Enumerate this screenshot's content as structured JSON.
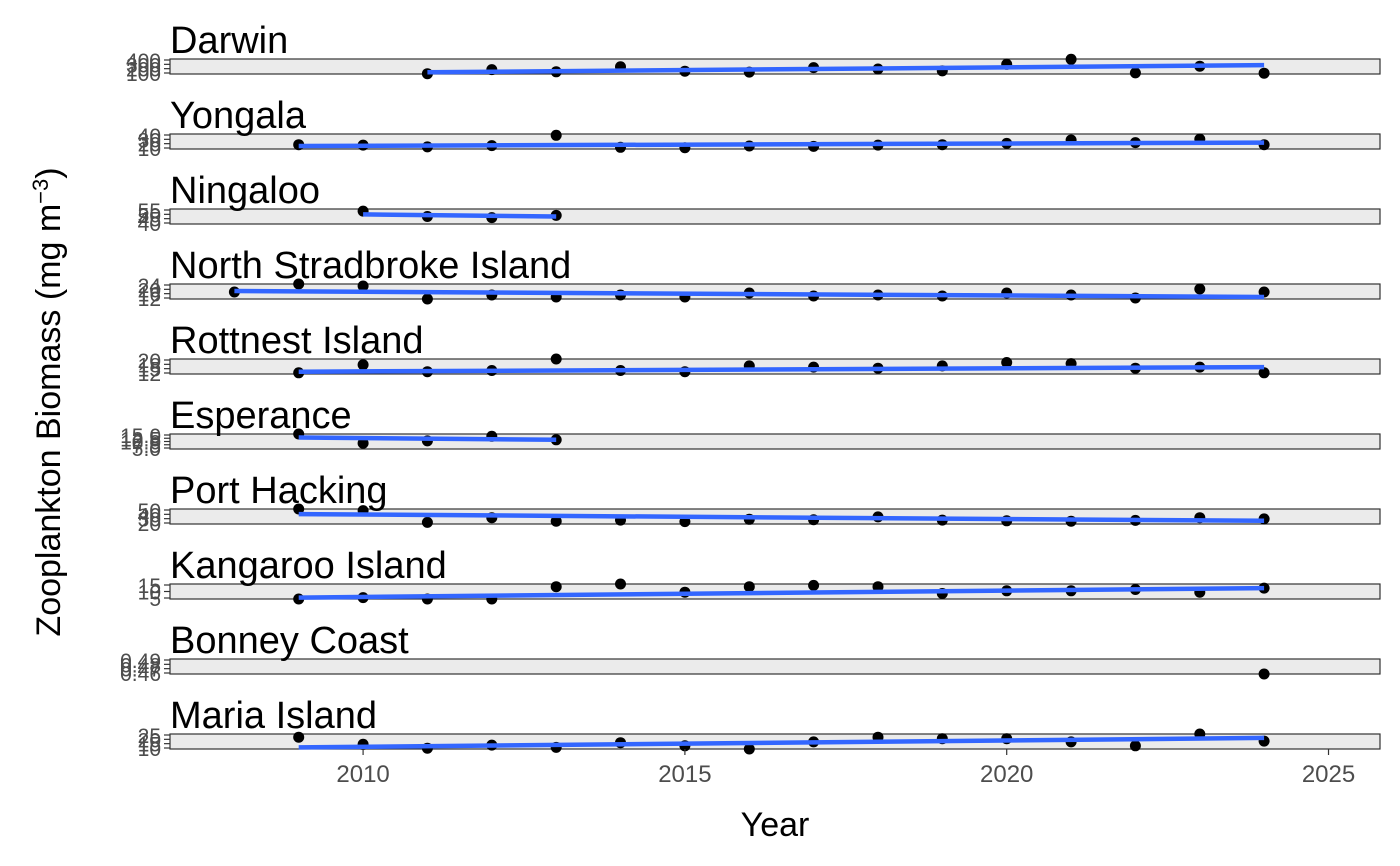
{
  "chart_data": {
    "type": "line",
    "xlabel": "Year",
    "ylabel": "Zooplankton Biomass (mg m",
    "ylabel_superscript": "−3",
    "ylabel_close": ")",
    "xlim": [
      2007,
      2025.8
    ],
    "x_ticks": [
      "2010",
      "2015",
      "2020",
      "2025"
    ],
    "x_tick_values": [
      2010,
      2015,
      2020,
      2025
    ],
    "point_color": "#000000",
    "trend_color": "#3366FF",
    "panel_fill": "#EBEBEB",
    "panels": [
      {
        "name": "Darwin",
        "ylim": [
          40,
          310
        ],
        "y_ticks": [
          "100",
          "200",
          "300",
          "400"
        ],
        "points": [
          [
            2011,
            45
          ],
          [
            2012,
            120
          ],
          [
            2013,
            80
          ],
          [
            2014,
            170
          ],
          [
            2015,
            90
          ],
          [
            2016,
            75
          ],
          [
            2017,
            155
          ],
          [
            2018,
            130
          ],
          [
            2019,
            95
          ],
          [
            2020,
            215
          ],
          [
            2021,
            305
          ],
          [
            2022,
            60
          ],
          [
            2023,
            180
          ],
          [
            2024,
            55
          ]
        ],
        "trend": [
          [
            2011,
            70
          ],
          [
            2024,
            200
          ]
        ]
      },
      {
        "name": "Yongala",
        "ylim": [
          15,
          50
        ],
        "y_ticks": [
          "10",
          "20",
          "30",
          "40"
        ],
        "points": [
          [
            2009,
            25
          ],
          [
            2010,
            24
          ],
          [
            2011,
            20
          ],
          [
            2012,
            23
          ],
          [
            2013,
            47
          ],
          [
            2014,
            19
          ],
          [
            2015,
            18
          ],
          [
            2016,
            22
          ],
          [
            2017,
            21
          ],
          [
            2018,
            24
          ],
          [
            2019,
            25
          ],
          [
            2020,
            28
          ],
          [
            2021,
            36
          ],
          [
            2022,
            30
          ],
          [
            2023,
            38
          ],
          [
            2024,
            25
          ]
        ],
        "trend": [
          [
            2009,
            22
          ],
          [
            2024,
            30
          ]
        ]
      },
      {
        "name": "Ningaloo",
        "ylim": [
          38,
          52
        ],
        "y_ticks": [
          "40",
          "45",
          "50",
          "55"
        ],
        "points": [
          [
            2010,
            50
          ],
          [
            2011,
            45
          ],
          [
            2012,
            44
          ],
          [
            2013,
            46
          ]
        ],
        "trend": [
          [
            2010,
            47
          ],
          [
            2013,
            45
          ]
        ]
      },
      {
        "name": "North Stradbroke Island",
        "ylim": [
          9,
          24
        ],
        "y_ticks": [
          "12",
          "16",
          "20",
          "24"
        ],
        "points": [
          [
            2008,
            16
          ],
          [
            2009,
            24
          ],
          [
            2010,
            22
          ],
          [
            2011,
            9
          ],
          [
            2012,
            13
          ],
          [
            2013,
            11
          ],
          [
            2014,
            13
          ],
          [
            2015,
            11
          ],
          [
            2016,
            15
          ],
          [
            2017,
            12
          ],
          [
            2018,
            13
          ],
          [
            2019,
            12
          ],
          [
            2020,
            15
          ],
          [
            2021,
            13
          ],
          [
            2022,
            10
          ],
          [
            2023,
            19
          ],
          [
            2024,
            16
          ]
        ],
        "trend": [
          [
            2008,
            17
          ],
          [
            2024,
            11
          ]
        ]
      },
      {
        "name": "Rottnest Island",
        "ylim": [
          9,
          22
        ],
        "y_ticks": [
          "12",
          "15",
          "18",
          "20"
        ],
        "points": [
          [
            2009,
            10
          ],
          [
            2010,
            17
          ],
          [
            2011,
            11
          ],
          [
            2012,
            12
          ],
          [
            2013,
            22
          ],
          [
            2014,
            12
          ],
          [
            2015,
            11
          ],
          [
            2016,
            16
          ],
          [
            2017,
            15
          ],
          [
            2018,
            14
          ],
          [
            2019,
            16
          ],
          [
            2020,
            19
          ],
          [
            2021,
            18
          ],
          [
            2022,
            14
          ],
          [
            2023,
            15
          ],
          [
            2024,
            10
          ]
        ],
        "trend": [
          [
            2009,
            11
          ],
          [
            2024,
            15
          ]
        ]
      },
      {
        "name": "Esperance",
        "ylim": [
          4,
          17
        ],
        "y_ticks": [
          "5.0",
          "7.5",
          "10.0",
          "12.5",
          "15.0"
        ],
        "points": [
          [
            2009,
            17
          ],
          [
            2010,
            9
          ],
          [
            2011,
            11
          ],
          [
            2012,
            15
          ],
          [
            2013,
            12
          ]
        ],
        "trend": [
          [
            2009,
            14
          ],
          [
            2013,
            12
          ]
        ]
      },
      {
        "name": "Port Hacking",
        "ylim": [
          8,
          46
        ],
        "y_ticks": [
          "20",
          "30",
          "40",
          "50"
        ],
        "points": [
          [
            2009,
            46
          ],
          [
            2010,
            42
          ],
          [
            2011,
            12
          ],
          [
            2012,
            24
          ],
          [
            2013,
            15
          ],
          [
            2014,
            18
          ],
          [
            2015,
            14
          ],
          [
            2016,
            20
          ],
          [
            2017,
            19
          ],
          [
            2018,
            26
          ],
          [
            2019,
            18
          ],
          [
            2020,
            16
          ],
          [
            2021,
            15
          ],
          [
            2022,
            17
          ],
          [
            2023,
            24
          ],
          [
            2024,
            21
          ]
        ],
        "trend": [
          [
            2009,
            33
          ],
          [
            2024,
            16
          ]
        ]
      },
      {
        "name": "Kangaroo Island",
        "ylim": [
          6,
          17
        ],
        "y_ticks": [
          "5",
          "10",
          "15"
        ],
        "points": [
          [
            2009,
            6
          ],
          [
            2010,
            7
          ],
          [
            2011,
            6
          ],
          [
            2012,
            6
          ],
          [
            2013,
            15
          ],
          [
            2014,
            17
          ],
          [
            2015,
            11
          ],
          [
            2016,
            15
          ],
          [
            2017,
            16
          ],
          [
            2018,
            15
          ],
          [
            2019,
            10
          ],
          [
            2020,
            12
          ],
          [
            2021,
            12
          ],
          [
            2022,
            13
          ],
          [
            2023,
            11
          ],
          [
            2024,
            14
          ]
        ],
        "trend": [
          [
            2009,
            7
          ],
          [
            2024,
            14
          ]
        ]
      },
      {
        "name": "Bonney Coast",
        "ylim": [
          0.455,
          0.495
        ],
        "y_ticks": [
          "0.46",
          "0.47",
          "0.48",
          "0.49"
        ],
        "points": [
          [
            2024,
            0.455
          ]
        ],
        "trend": []
      },
      {
        "name": "Maria Island",
        "ylim": [
          9,
          28
        ],
        "y_ticks": [
          "10",
          "15",
          "20",
          "25"
        ],
        "points": [
          [
            2009,
            24
          ],
          [
            2010,
            15
          ],
          [
            2011,
            10
          ],
          [
            2012,
            14
          ],
          [
            2013,
            11
          ],
          [
            2014,
            17
          ],
          [
            2015,
            13
          ],
          [
            2016,
            9
          ],
          [
            2017,
            18
          ],
          [
            2018,
            24
          ],
          [
            2019,
            22
          ],
          [
            2020,
            22
          ],
          [
            2021,
            18
          ],
          [
            2022,
            13
          ],
          [
            2023,
            28
          ],
          [
            2024,
            19
          ]
        ],
        "trend": [
          [
            2009,
            11
          ],
          [
            2024,
            23
          ]
        ]
      }
    ]
  }
}
